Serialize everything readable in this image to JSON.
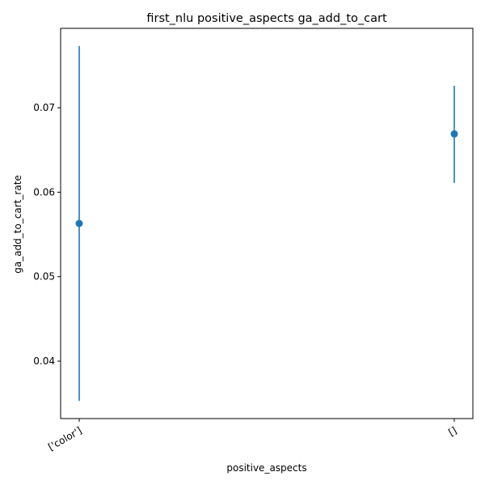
{
  "chart_data": {
    "type": "scatter",
    "title": "first_nlu positive_aspects ga_add_to_cart",
    "xlabel": "positive_aspects",
    "ylabel": "ga_add_to_cart_rate",
    "categories": [
      "['color']",
      "[]"
    ],
    "series": [
      {
        "values": [
          0.0563,
          0.0669
        ],
        "error_lower": [
          0.0353,
          0.0611
        ],
        "error_upper": [
          0.0773,
          0.0726
        ]
      }
    ],
    "yticks": [
      0.04,
      0.05,
      0.06,
      0.07
    ],
    "ytick_labels": [
      "0.04",
      "0.05",
      "0.06",
      "0.07"
    ],
    "ylim": [
      0.0332,
      0.0794
    ],
    "grid": false,
    "color": "#1f77b4"
  }
}
